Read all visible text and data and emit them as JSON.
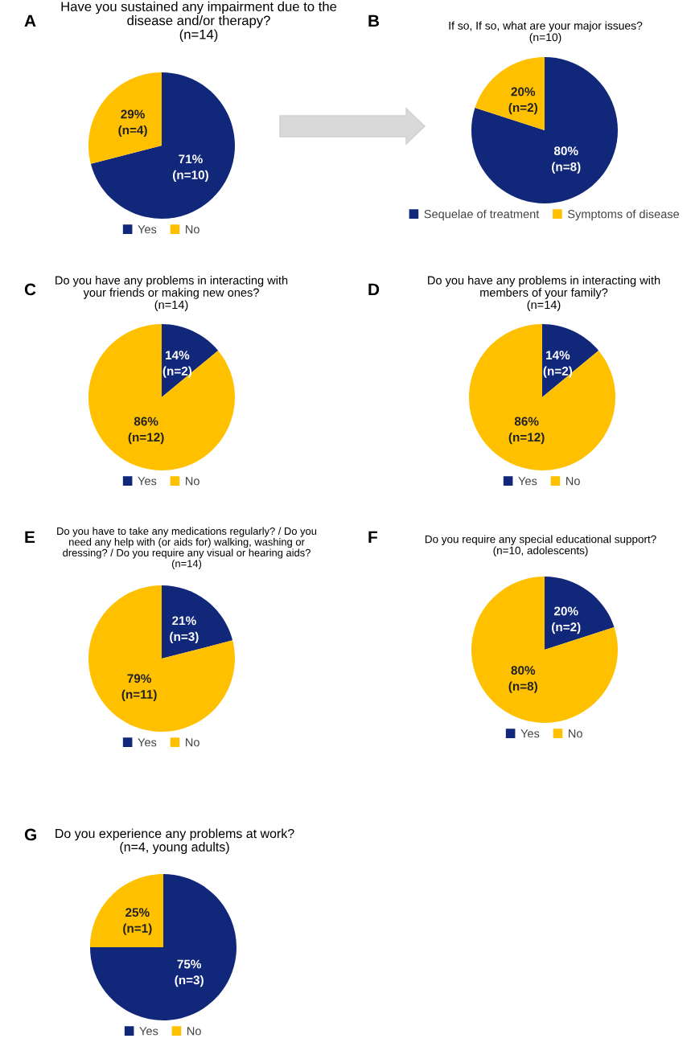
{
  "chart_data": [
    {
      "type": "pie",
      "annotations": [
        "A"
      ],
      "title": "Have you sustained any impairment due to the\ndisease and/or therapy?\n(n=14)",
      "categories": [
        "Yes",
        "No"
      ],
      "values": [
        71,
        29
      ],
      "colors": [
        "#11277a",
        "#ffc000"
      ],
      "value_labels": [
        "71%\n(n=10)",
        "29%\n(n=4)"
      ],
      "legend": "bottom"
    },
    {
      "type": "pie",
      "annotations": [
        "B"
      ],
      "title": "If so, If so, what are your major issues?\n(n=10)",
      "categories": [
        "Sequelae of treatment",
        "Symptoms of disease"
      ],
      "values": [
        80,
        20
      ],
      "colors": [
        "#11277a",
        "#ffc000"
      ],
      "value_labels": [
        "80%\n(n=8)",
        "20%\n(n=2)"
      ],
      "legend": "bottom"
    },
    {
      "type": "pie",
      "annotations": [
        "C"
      ],
      "title": "Do you have any problems in interacting with\nyour friends or making new ones?\n(n=14)",
      "categories": [
        "Yes",
        "No"
      ],
      "values": [
        14,
        86
      ],
      "colors": [
        "#11277a",
        "#ffc000"
      ],
      "value_labels": [
        "14%\n(n=2)",
        "86%\n(n=12)"
      ],
      "legend": "bottom"
    },
    {
      "type": "pie",
      "annotations": [
        "D"
      ],
      "title": "Do you have any problems in interacting with\nmembers of your family?\n(n=14)",
      "categories": [
        "Yes",
        "No"
      ],
      "values": [
        14,
        86
      ],
      "colors": [
        "#11277a",
        "#ffc000"
      ],
      "value_labels": [
        "14%\n(n=2)",
        "86%\n(n=12)"
      ],
      "legend": "bottom"
    },
    {
      "type": "pie",
      "annotations": [
        "E"
      ],
      "title": "Do you have to take any medications regularly? / Do you\nneed any help with (or aids for) walking, washing or\ndressing? / Do you require any visual or hearing aids?\n(n=14)",
      "categories": [
        "Yes",
        "No"
      ],
      "values": [
        21,
        79
      ],
      "colors": [
        "#11277a",
        "#ffc000"
      ],
      "value_labels": [
        "21%\n(n=3)",
        "79%\n(n=11)"
      ],
      "legend": "bottom"
    },
    {
      "type": "pie",
      "annotations": [
        "F"
      ],
      "title": "Do you require any special educational support?\n(n=10, adolescents)",
      "categories": [
        "Yes",
        "No"
      ],
      "values": [
        20,
        80
      ],
      "colors": [
        "#11277a",
        "#ffc000"
      ],
      "value_labels": [
        "20%\n(n=2)",
        "80%\n(n=8)"
      ],
      "legend": "bottom"
    },
    {
      "type": "pie",
      "annotations": [
        "G"
      ],
      "title": "Do you experience any problems at work?\n(n=4, young adults)",
      "categories": [
        "Yes",
        "No"
      ],
      "values": [
        75,
        25
      ],
      "colors": [
        "#11277a",
        "#ffc000"
      ],
      "value_labels": [
        "75%\n(n=3)",
        "25%\n(n=1)"
      ],
      "legend": "bottom"
    }
  ]
}
